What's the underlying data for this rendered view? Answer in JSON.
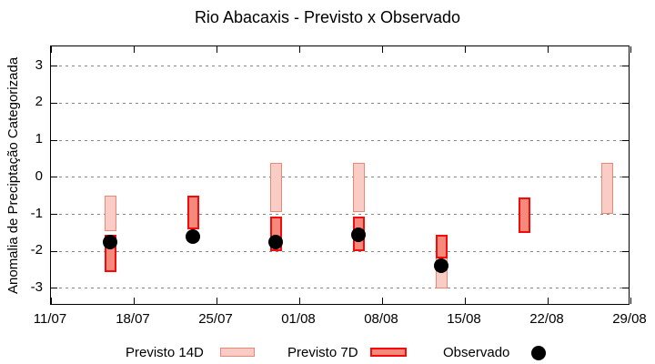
{
  "chart_data": {
    "type": "bar",
    "subtype": "interval-boxes-with-scatter",
    "title": "Rio Abacaxis - Previsto x Observado",
    "xlabel": "",
    "ylabel": "Anomalia de Preciptação Categorizada",
    "x_axis": {
      "tick_labels": [
        "11/07",
        "18/07",
        "25/07",
        "01/08",
        "08/08",
        "15/08",
        "22/08",
        "29/08"
      ],
      "tick_days": [
        0,
        7,
        14,
        21,
        28,
        35,
        42,
        49
      ],
      "xlim_days": [
        0,
        49
      ]
    },
    "y_axis": {
      "tick_labels": [
        "3",
        "2",
        "1",
        "0",
        "-1",
        "-2",
        "-3"
      ],
      "tick_values": [
        3,
        2,
        1,
        0,
        -1,
        -2,
        -3
      ],
      "ylim": [
        -3.5,
        3.5
      ]
    },
    "grid": "horizontal dashed gray lines at integer y values",
    "legend_position": "bottom-outside",
    "colors": {
      "previsto14_fill": "#f9cdc6",
      "previsto14_border": "#ee8575",
      "previsto7_fill": "#f58a7c",
      "previsto7_border": "#f40b0b",
      "observado": "#000000",
      "gridline": "#878787",
      "frame": "#000000"
    },
    "series": [
      {
        "name": "Previsto 14D",
        "kind": "interval",
        "points": [
          {
            "date": "16/07",
            "day": 5,
            "hi": -0.5,
            "lo": -1.45
          },
          {
            "date": "30/07",
            "day": 19,
            "hi": 0.4,
            "lo": -0.95
          },
          {
            "date": "06/08",
            "day": 26,
            "hi": 0.4,
            "lo": -0.95
          },
          {
            "date": "13/08",
            "day": 33,
            "hi": -1.55,
            "lo": -3.0
          },
          {
            "date": "27/08",
            "day": 47,
            "hi": 0.4,
            "lo": -1.0
          }
        ]
      },
      {
        "name": "Previsto 7D",
        "kind": "interval",
        "points": [
          {
            "date": "16/07",
            "day": 5,
            "hi": -1.55,
            "lo": -2.55
          },
          {
            "date": "23/07",
            "day": 12,
            "hi": -0.5,
            "lo": -1.4
          },
          {
            "date": "30/07",
            "day": 19,
            "hi": -1.05,
            "lo": -2.0
          },
          {
            "date": "06/08",
            "day": 26,
            "hi": -1.05,
            "lo": -2.0
          },
          {
            "date": "13/08",
            "day": 33,
            "hi": -1.55,
            "lo": -2.2
          },
          {
            "date": "20/08",
            "day": 40,
            "hi": -0.55,
            "lo": -1.5
          }
        ]
      },
      {
        "name": "Observado",
        "kind": "scatter",
        "points": [
          {
            "date": "16/07",
            "day": 5,
            "v": -1.75
          },
          {
            "date": "23/07",
            "day": 12,
            "v": -1.6
          },
          {
            "date": "30/07",
            "day": 19,
            "v": -1.75
          },
          {
            "date": "06/08",
            "day": 26,
            "v": -1.55
          },
          {
            "date": "13/08",
            "day": 33,
            "v": -2.4
          }
        ]
      }
    ]
  }
}
